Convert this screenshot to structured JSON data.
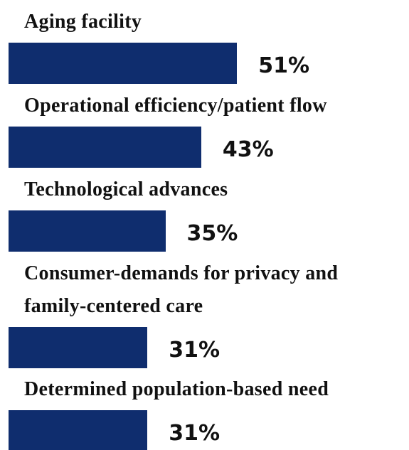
{
  "chart_data": {
    "type": "bar",
    "orientation": "horizontal",
    "categories": [
      "Aging facility",
      "Operational efficiency/patient flow",
      "Technological advances",
      "Consumer-demands for privacy and family-centered care",
      "Determined population-based need"
    ],
    "values": [
      51,
      43,
      35,
      31,
      31
    ],
    "value_labels": [
      "51%",
      "43%",
      "35%",
      "31%",
      "31%"
    ],
    "color": "#0f2d6e"
  }
}
